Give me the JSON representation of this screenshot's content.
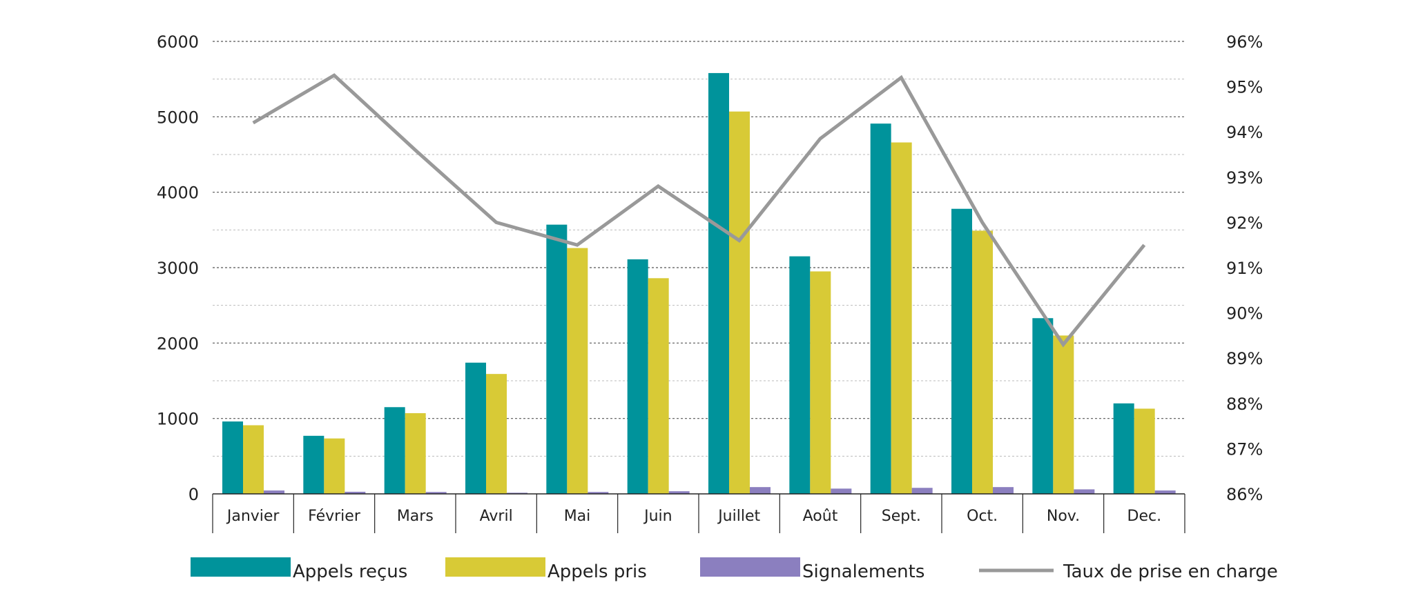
{
  "chart_data": {
    "type": "bar",
    "categories": [
      "Janvier",
      "Février",
      "Mars",
      "Avril",
      "Mai",
      "Juin",
      "Juillet",
      "Août",
      "Sept.",
      "Oct.",
      "Nov.",
      "Dec."
    ],
    "series": [
      {
        "name": "Appels reçus",
        "type": "bar",
        "axis": "left",
        "color": "#00939B",
        "values": [
          960,
          770,
          1150,
          1740,
          3570,
          3110,
          5580,
          3150,
          4910,
          3780,
          2330,
          1200
        ]
      },
      {
        "name": "Appels pris",
        "type": "bar",
        "axis": "left",
        "color": "#D8CA36",
        "values": [
          910,
          735,
          1070,
          1590,
          3260,
          2860,
          5070,
          2950,
          4660,
          3490,
          2100,
          1130
        ]
      },
      {
        "name": "Signalements",
        "type": "bar",
        "axis": "left",
        "color": "#8B7FBF",
        "values": [
          45,
          28,
          25,
          15,
          25,
          35,
          90,
          70,
          80,
          90,
          60,
          45
        ]
      },
      {
        "name": "Taux de prise en charge",
        "type": "line",
        "axis": "right",
        "color": "#999999",
        "values": [
          94.2,
          95.25,
          93.6,
          92.0,
          91.5,
          92.8,
          91.6,
          93.85,
          95.2,
          92.0,
          89.3,
          91.5
        ]
      }
    ],
    "y_left": {
      "min": 0,
      "max": 6000,
      "ticks": [
        0,
        1000,
        2000,
        3000,
        4000,
        5000,
        6000
      ]
    },
    "y_right": {
      "min": 86,
      "max": 96,
      "unit": "%",
      "ticks": [
        "86%",
        "87%",
        "88%",
        "89%",
        "90%",
        "91%",
        "92%",
        "93%",
        "94%",
        "95%",
        "96%"
      ]
    },
    "grid": true,
    "legend_position": "bottom"
  }
}
